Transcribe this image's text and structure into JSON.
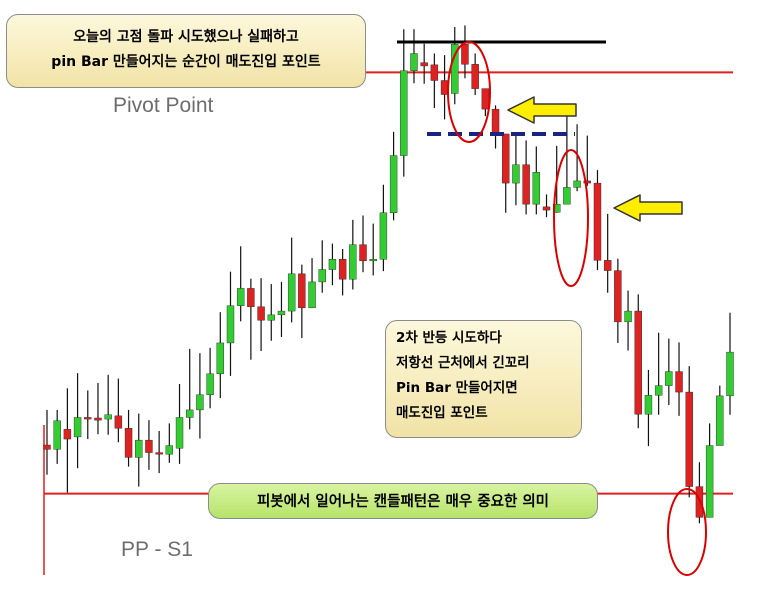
{
  "annotations": {
    "top": [
      "오늘의 고점 돌파 시도했으나 실패하고",
      "pin Bar 만들어지는 순간이 매도진입 포인트"
    ],
    "middle": [
      "2차 반등 시도하다",
      "저항선 근처에서 긴꼬리",
      "Pin Bar 만들어지면",
      "매도진입 포인트"
    ],
    "bottom": "피봇에서 일어나는 캔들패턴은 매우 중요한 의미"
  },
  "chart_data": {
    "type": "candlestick",
    "levels": [
      {
        "name": "Pivot Point",
        "value": 94,
        "color": "#e01f1f"
      },
      {
        "name": "PP - S1",
        "value": 16,
        "color": "#e01f1f"
      }
    ],
    "ylim": [
      0,
      100
    ],
    "colors": {
      "bullish": "#33cc33",
      "bearish": "#dd2222",
      "high_line": "#000000",
      "resistance_line": "#1a237e",
      "arrow": "#ffee00",
      "highlight": "#dd0000"
    },
    "candles": [
      [
        25.0,
        24.2,
        31.5,
        19.5
      ],
      [
        24.2,
        29.5,
        31.5,
        21.5
      ],
      [
        27.9,
        26.1,
        35.5,
        16.2
      ],
      [
        26.5,
        30.1,
        38.3,
        20.7
      ],
      [
        30.1,
        29.8,
        35.1,
        26.1
      ],
      [
        30.0,
        29.6,
        36.5,
        27.0
      ],
      [
        29.8,
        30.6,
        38.0,
        26.9
      ],
      [
        30.4,
        28.1,
        37.3,
        25.5
      ],
      [
        28.1,
        22.7,
        31.5,
        21.0
      ],
      [
        22.7,
        25.9,
        30.8,
        17.3
      ],
      [
        25.9,
        23.6,
        29.6,
        20.4
      ],
      [
        23.6,
        23.3,
        27.6,
        19.8
      ],
      [
        23.3,
        24.9,
        29.0,
        21.7
      ],
      [
        24.4,
        30.1,
        36.3,
        21.5
      ],
      [
        30.1,
        31.5,
        42.8,
        27.9
      ],
      [
        31.5,
        34.3,
        42.0,
        26.2
      ],
      [
        34.3,
        38.2,
        43.0,
        31.8
      ],
      [
        38.2,
        43.9,
        49.6,
        33.7
      ],
      [
        43.9,
        50.8,
        57.1,
        37.8
      ],
      [
        50.8,
        54.0,
        61.8,
        47.9
      ],
      [
        54.0,
        50.6,
        55.8,
        40.8
      ],
      [
        50.6,
        48.1,
        55.9,
        42.4
      ],
      [
        48.1,
        49.1,
        54.8,
        44.3
      ],
      [
        49.1,
        49.8,
        55.2,
        45.0
      ],
      [
        49.8,
        56.7,
        63.4,
        47.7
      ],
      [
        56.7,
        50.4,
        58.4,
        44.8
      ],
      [
        50.4,
        55.2,
        59.6,
        52.3
      ],
      [
        55.2,
        57.5,
        62.9,
        53.2
      ],
      [
        57.5,
        59.4,
        62.3,
        54.6
      ],
      [
        59.4,
        55.7,
        61.3,
        52.7
      ],
      [
        55.7,
        62.1,
        66.7,
        53.8
      ],
      [
        62.1,
        59.1,
        67.5,
        57.0
      ],
      [
        59.1,
        59.4,
        66.0,
        56.4
      ],
      [
        59.4,
        68.0,
        73.2,
        57.2
      ],
      [
        68.0,
        78.6,
        83.0,
        66.6
      ],
      [
        78.6,
        94.3,
        102.0,
        74.7
      ],
      [
        94.3,
        97.5,
        102.0,
        92.0
      ],
      [
        95.8,
        95.2,
        99.3,
        91.9
      ],
      [
        95.4,
        92.5,
        97.5,
        87.4
      ],
      [
        92.5,
        89.9,
        97.2,
        85.3
      ],
      [
        90.1,
        99.2,
        102.4,
        88.1
      ],
      [
        99.2,
        95.5,
        102.7,
        92.9
      ],
      [
        95.5,
        91.0,
        97.5,
        89.8
      ],
      [
        91.0,
        87.2,
        91.0,
        85.9
      ],
      [
        87.2,
        82.6,
        87.9,
        79.9
      ],
      [
        82.6,
        73.5,
        82.6,
        68.0
      ],
      [
        73.5,
        76.9,
        82.9,
        69.4
      ],
      [
        76.9,
        69.6,
        81.4,
        67.7
      ],
      [
        69.6,
        75.5,
        80.3,
        67.7
      ],
      [
        69.1,
        68.5,
        71.4,
        67.2
      ],
      [
        68.1,
        69.6,
        80.4,
        68.0
      ],
      [
        69.6,
        72.7,
        86.3,
        70.0
      ],
      [
        72.7,
        73.9,
        84.4,
        72.0
      ],
      [
        73.9,
        73.5,
        82.3,
        73.0
      ],
      [
        73.5,
        59.2,
        75.9,
        57.4
      ],
      [
        59.2,
        57.3,
        67.8,
        53.2
      ],
      [
        57.3,
        47.8,
        59.5,
        43.9
      ],
      [
        47.8,
        49.8,
        53.6,
        42.5
      ],
      [
        49.8,
        30.7,
        52.9,
        28.1
      ],
      [
        30.7,
        34.2,
        38.9,
        24.8
      ],
      [
        34.2,
        36.0,
        45.8,
        30.6
      ],
      [
        36.0,
        38.6,
        44.7,
        32.4
      ],
      [
        38.6,
        34.8,
        44.0,
        30.4
      ],
      [
        34.8,
        17.3,
        39.6,
        15.3
      ],
      [
        17.3,
        11.6,
        21.8,
        10.5
      ],
      [
        11.6,
        24.9,
        29.0,
        11.6
      ],
      [
        24.9,
        34.1,
        36.0,
        25.8
      ],
      [
        34.1,
        42.2,
        49.5,
        30.6
      ]
    ]
  }
}
